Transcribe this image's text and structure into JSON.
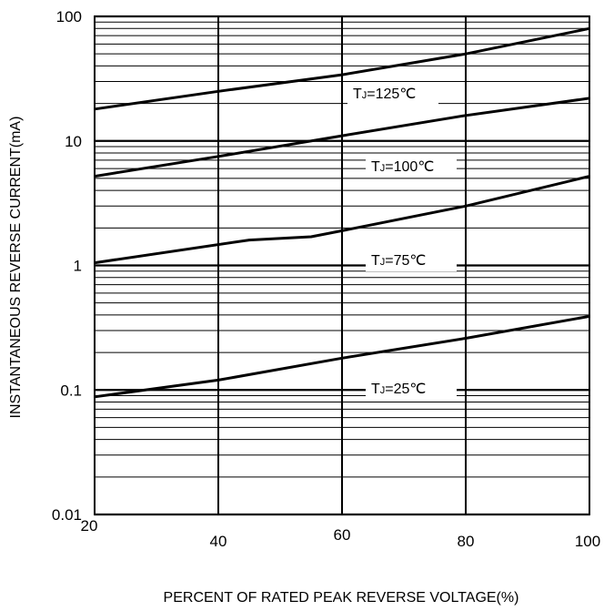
{
  "chart_data": {
    "type": "line",
    "title": "",
    "xlabel": "PERCENT OF RATED PEAK REVERSE VOLTAGE(%)",
    "ylabel": "INSTANTANEOUS REVERSE CURRENT(mA)",
    "x_scale": "linear",
    "y_scale": "log",
    "xlim": [
      20,
      100
    ],
    "ylim": [
      0.01,
      100
    ],
    "x_ticks": [
      20,
      40,
      60,
      80,
      100
    ],
    "x_tick_labels": [
      "20",
      "40",
      "60",
      "80",
      "100"
    ],
    "y_ticks": [
      100,
      10,
      1,
      0.1,
      0.01
    ],
    "y_tick_labels": [
      "100",
      "10",
      "1",
      "0.1",
      "0.01"
    ],
    "grid": true,
    "series": [
      {
        "name": "TJ=125℃",
        "label_main": "T",
        "label_sub": "J",
        "label_rest": "=125℃",
        "x": [
          20,
          40,
          60,
          80,
          100
        ],
        "y": [
          18,
          25,
          34,
          50,
          80
        ]
      },
      {
        "name": "TJ=100℃",
        "label_main": "T",
        "label_sub": "J",
        "label_rest": "=100℃",
        "x": [
          20,
          40,
          60,
          80,
          100
        ],
        "y": [
          5.2,
          7.5,
          11,
          16,
          22
        ]
      },
      {
        "name": "TJ=75℃",
        "label_main": "T",
        "label_sub": "J",
        "label_rest": "=75℃",
        "x": [
          20,
          45,
          55,
          60,
          80,
          100
        ],
        "y": [
          1.05,
          1.6,
          1.7,
          1.9,
          3.0,
          5.2
        ]
      },
      {
        "name": "TJ=25℃",
        "label_main": "T",
        "label_sub": "J",
        "label_rest": "=25℃",
        "x": [
          20,
          40,
          60,
          80,
          100
        ],
        "y": [
          0.088,
          0.12,
          0.18,
          0.26,
          0.39
        ]
      }
    ]
  }
}
